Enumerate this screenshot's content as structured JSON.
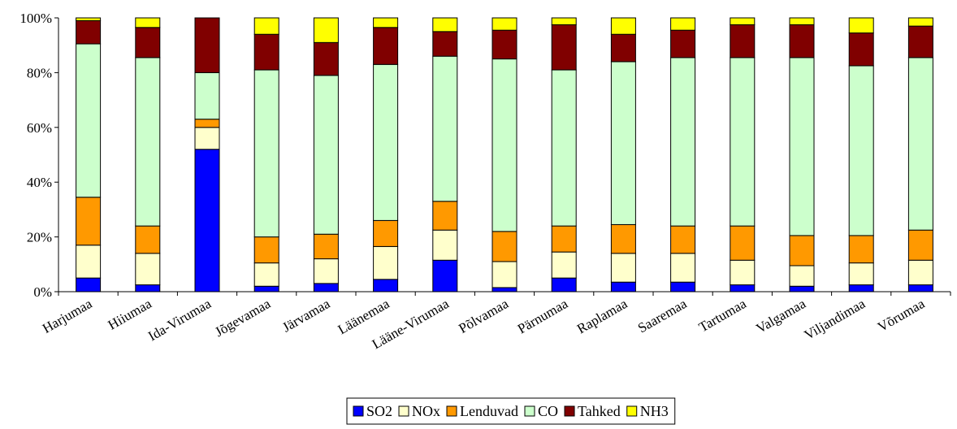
{
  "chart_data": {
    "type": "bar",
    "stacked": "percent",
    "categories": [
      "Harjumaa",
      "Hiiumaa",
      "Ida-Virumaa",
      "Jõgevamaa",
      "Järvamaa",
      "Läänemaa",
      "Lääne-Virumaa",
      "Põlvamaa",
      "Pärnumaa",
      "Raplamaa",
      "Saaremaa",
      "Tartumaa",
      "Valgamaa",
      "Viljandimaa",
      "Võrumaa"
    ],
    "series": [
      {
        "name": "SO2",
        "color": "#0000ff",
        "values": [
          5,
          2.5,
          52,
          2,
          3,
          4.5,
          11.5,
          1.5,
          5,
          3.5,
          3.5,
          2.5,
          2,
          2.5,
          2.5
        ]
      },
      {
        "name": "NOx",
        "color": "#ffffcc",
        "values": [
          12,
          11.5,
          8,
          8.5,
          9,
          12,
          11,
          9.5,
          9.5,
          10.5,
          10.5,
          9,
          7.5,
          8,
          9
        ]
      },
      {
        "name": "Lenduvad",
        "color": "#ff9900",
        "values": [
          17.5,
          10,
          3,
          9.5,
          9,
          9.5,
          10.5,
          11,
          9.5,
          10.5,
          10,
          12.5,
          11,
          10,
          11
        ]
      },
      {
        "name": "CO",
        "color": "#ccffcc",
        "values": [
          56,
          61.5,
          17,
          61,
          58,
          57,
          53,
          63,
          57,
          59.5,
          61.5,
          61.5,
          65,
          62,
          63
        ]
      },
      {
        "name": "Tahked",
        "color": "#800000",
        "values": [
          8.5,
          11,
          20,
          13,
          12,
          13.5,
          9,
          10.5,
          16.5,
          10,
          10,
          12,
          12,
          12,
          11.5
        ]
      },
      {
        "name": "NH3",
        "color": "#ffff00",
        "values": [
          1,
          3.5,
          0,
          6,
          9,
          3.5,
          5,
          4.5,
          2.5,
          6,
          4.5,
          2.5,
          2.5,
          5.5,
          3
        ]
      }
    ],
    "ylim": [
      0,
      100
    ],
    "y_ticks": [
      "0%",
      "20%",
      "40%",
      "60%",
      "80%",
      "100%"
    ],
    "grid": false,
    "legend": "bottom-center"
  }
}
